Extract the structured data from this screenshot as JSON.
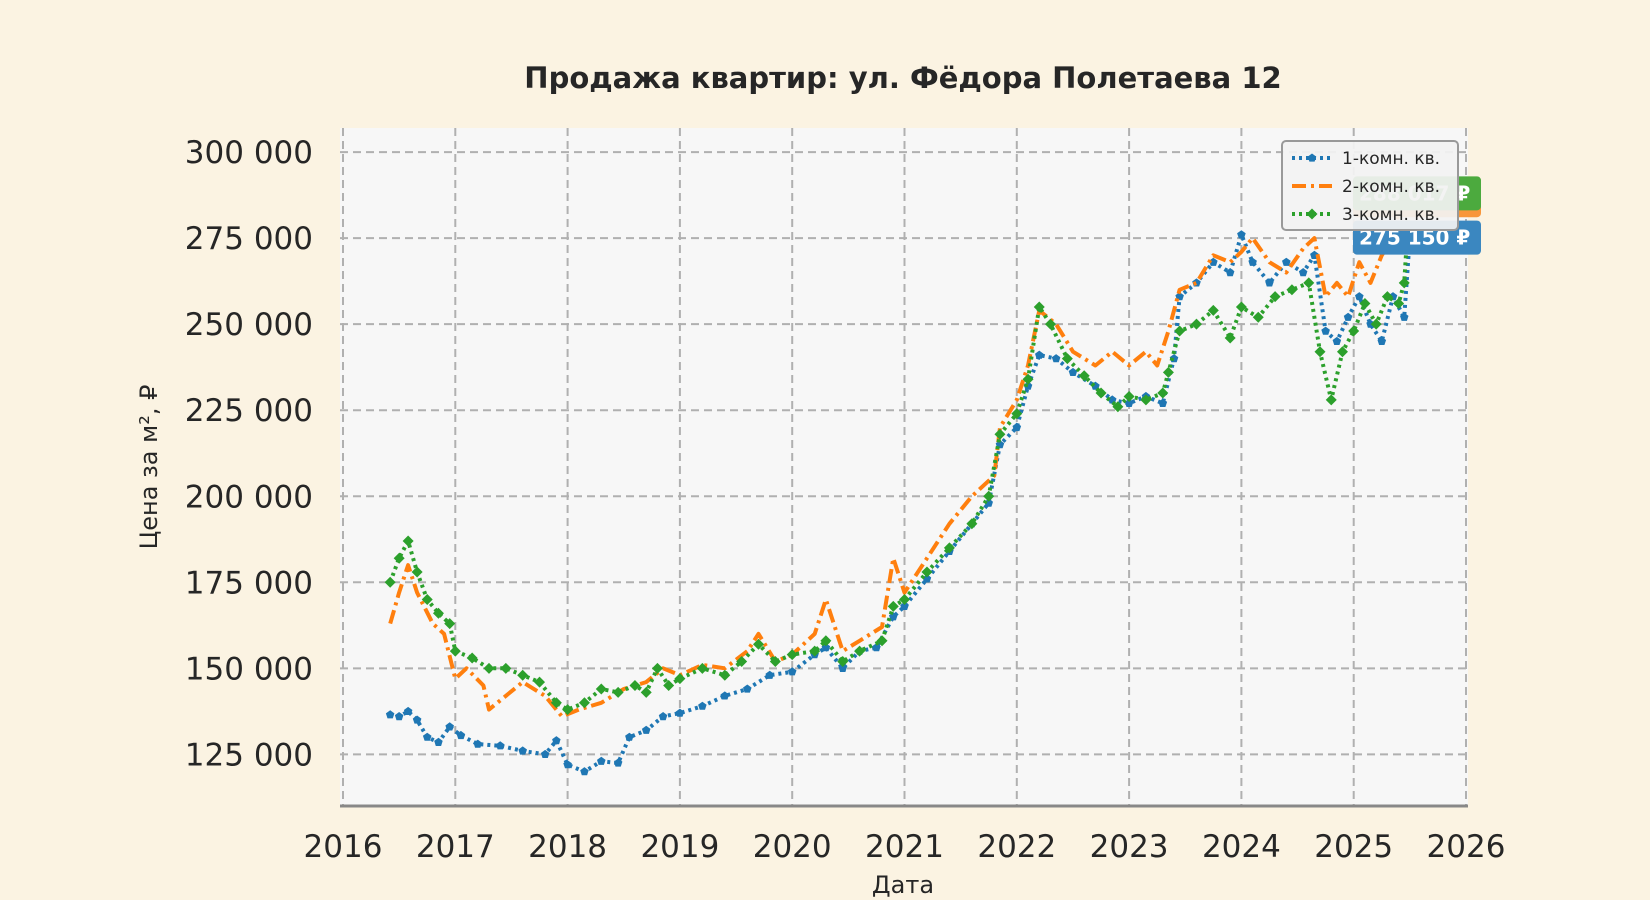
{
  "chart_data": {
    "type": "line",
    "title": "Продажа квартир: ул. Фёдора Полетаева 12",
    "xlabel": "Дата",
    "ylabel": "Цена за м², ₽",
    "xlim": [
      2016,
      2026
    ],
    "ylim": [
      110000,
      307000
    ],
    "x_ticks": [
      "2016",
      "2017",
      "2018",
      "2019",
      "2020",
      "2021",
      "2022",
      "2023",
      "2024",
      "2025",
      "2026"
    ],
    "y_ticks": [
      "300 000",
      "275 000",
      "250 000",
      "225 000",
      "200 000",
      "175 000",
      "150 000",
      "125 000"
    ],
    "y_tick_values": [
      300000,
      275000,
      250000,
      225000,
      200000,
      175000,
      150000,
      125000
    ],
    "grid": true,
    "legend_position": "top-right",
    "series": [
      {
        "name": "1-комн. кв.",
        "color": "#1f77b4",
        "line_style": "dotted",
        "marker": "pentagon",
        "last_value_label": "275 150 ₽",
        "points": [
          [
            2016.42,
            136500
          ],
          [
            2016.5,
            136000
          ],
          [
            2016.58,
            137500
          ],
          [
            2016.66,
            135000
          ],
          [
            2016.75,
            130000
          ],
          [
            2016.85,
            128500
          ],
          [
            2016.95,
            133000
          ],
          [
            2017.05,
            130500
          ],
          [
            2017.2,
            128000
          ],
          [
            2017.4,
            127500
          ],
          [
            2017.6,
            126000
          ],
          [
            2017.8,
            125000
          ],
          [
            2017.9,
            129000
          ],
          [
            2018.0,
            122000
          ],
          [
            2018.15,
            120000
          ],
          [
            2018.3,
            123000
          ],
          [
            2018.45,
            122500
          ],
          [
            2018.55,
            130000
          ],
          [
            2018.7,
            132000
          ],
          [
            2018.85,
            136000
          ],
          [
            2019.0,
            137000
          ],
          [
            2019.2,
            139000
          ],
          [
            2019.4,
            142000
          ],
          [
            2019.6,
            144000
          ],
          [
            2019.8,
            148000
          ],
          [
            2020.0,
            149000
          ],
          [
            2020.2,
            154000
          ],
          [
            2020.3,
            156000
          ],
          [
            2020.45,
            150000
          ],
          [
            2020.6,
            155000
          ],
          [
            2020.75,
            156000
          ],
          [
            2020.9,
            165000
          ],
          [
            2021.0,
            168000
          ],
          [
            2021.2,
            176000
          ],
          [
            2021.4,
            184000
          ],
          [
            2021.6,
            192000
          ],
          [
            2021.75,
            198000
          ],
          [
            2021.85,
            215000
          ],
          [
            2022.0,
            220000
          ],
          [
            2022.1,
            232000
          ],
          [
            2022.2,
            241000
          ],
          [
            2022.35,
            240000
          ],
          [
            2022.5,
            236000
          ],
          [
            2022.7,
            232000
          ],
          [
            2022.85,
            228000
          ],
          [
            2023.0,
            227000
          ],
          [
            2023.15,
            229000
          ],
          [
            2023.3,
            227000
          ],
          [
            2023.4,
            240000
          ],
          [
            2023.45,
            258000
          ],
          [
            2023.6,
            262000
          ],
          [
            2023.75,
            268000
          ],
          [
            2023.9,
            265000
          ],
          [
            2024.0,
            276000
          ],
          [
            2024.1,
            268000
          ],
          [
            2024.25,
            262000
          ],
          [
            2024.4,
            268000
          ],
          [
            2024.55,
            265000
          ],
          [
            2024.65,
            270000
          ],
          [
            2024.75,
            248000
          ],
          [
            2024.85,
            245000
          ],
          [
            2024.95,
            252000
          ],
          [
            2025.05,
            258000
          ],
          [
            2025.15,
            250000
          ],
          [
            2025.25,
            245000
          ],
          [
            2025.35,
            258000
          ],
          [
            2025.45,
            252000
          ],
          [
            2025.5,
            275150
          ]
        ]
      },
      {
        "name": "2-комн. кв.",
        "color": "#ff7f0e",
        "line_style": "dashdot",
        "marker": "none",
        "last_value_label": "286 017 ₽",
        "points": [
          [
            2016.42,
            163000
          ],
          [
            2016.5,
            172000
          ],
          [
            2016.58,
            180000
          ],
          [
            2016.66,
            172000
          ],
          [
            2016.8,
            163000
          ],
          [
            2016.9,
            160000
          ],
          [
            2017.0,
            147000
          ],
          [
            2017.1,
            150000
          ],
          [
            2017.25,
            145000
          ],
          [
            2017.3,
            138000
          ],
          [
            2017.45,
            142000
          ],
          [
            2017.6,
            146000
          ],
          [
            2017.8,
            142000
          ],
          [
            2017.95,
            136000
          ],
          [
            2018.1,
            138000
          ],
          [
            2018.3,
            140000
          ],
          [
            2018.5,
            144000
          ],
          [
            2018.7,
            146000
          ],
          [
            2018.85,
            150000
          ],
          [
            2019.0,
            148000
          ],
          [
            2019.2,
            151000
          ],
          [
            2019.4,
            150000
          ],
          [
            2019.6,
            155000
          ],
          [
            2019.7,
            160000
          ],
          [
            2019.85,
            152000
          ],
          [
            2020.0,
            154000
          ],
          [
            2020.2,
            160000
          ],
          [
            2020.3,
            170000
          ],
          [
            2020.45,
            155000
          ],
          [
            2020.6,
            158000
          ],
          [
            2020.8,
            162000
          ],
          [
            2020.9,
            182000
          ],
          [
            2021.0,
            172000
          ],
          [
            2021.2,
            182000
          ],
          [
            2021.4,
            192000
          ],
          [
            2021.6,
            200000
          ],
          [
            2021.8,
            206000
          ],
          [
            2021.85,
            220000
          ],
          [
            2022.0,
            228000
          ],
          [
            2022.1,
            238000
          ],
          [
            2022.2,
            254000
          ],
          [
            2022.35,
            250000
          ],
          [
            2022.5,
            242000
          ],
          [
            2022.7,
            238000
          ],
          [
            2022.85,
            242000
          ],
          [
            2023.0,
            238000
          ],
          [
            2023.15,
            242000
          ],
          [
            2023.25,
            238000
          ],
          [
            2023.35,
            248000
          ],
          [
            2023.45,
            260000
          ],
          [
            2023.6,
            262000
          ],
          [
            2023.75,
            270000
          ],
          [
            2023.9,
            268000
          ],
          [
            2024.0,
            271000
          ],
          [
            2024.1,
            275000
          ],
          [
            2024.25,
            268000
          ],
          [
            2024.4,
            265000
          ],
          [
            2024.55,
            272000
          ],
          [
            2024.65,
            275000
          ],
          [
            2024.75,
            258000
          ],
          [
            2024.85,
            262000
          ],
          [
            2024.95,
            258000
          ],
          [
            2025.05,
            268000
          ],
          [
            2025.15,
            262000
          ],
          [
            2025.25,
            270000
          ],
          [
            2025.35,
            275000
          ],
          [
            2025.45,
            290000
          ],
          [
            2025.5,
            286017
          ]
        ]
      },
      {
        "name": "3-комн. кв.",
        "color": "#2ca02c",
        "line_style": "dotted",
        "marker": "diamond",
        "last_value_label": "288 017 ₽",
        "points": [
          [
            2016.42,
            175000
          ],
          [
            2016.5,
            182000
          ],
          [
            2016.58,
            187000
          ],
          [
            2016.66,
            178000
          ],
          [
            2016.75,
            170000
          ],
          [
            2016.85,
            166000
          ],
          [
            2016.95,
            163000
          ],
          [
            2017.0,
            155000
          ],
          [
            2017.15,
            153000
          ],
          [
            2017.3,
            150000
          ],
          [
            2017.45,
            150000
          ],
          [
            2017.6,
            148000
          ],
          [
            2017.75,
            146000
          ],
          [
            2017.9,
            140000
          ],
          [
            2018.0,
            138000
          ],
          [
            2018.15,
            140000
          ],
          [
            2018.3,
            144000
          ],
          [
            2018.45,
            143000
          ],
          [
            2018.6,
            145000
          ],
          [
            2018.7,
            143000
          ],
          [
            2018.8,
            150000
          ],
          [
            2018.9,
            145000
          ],
          [
            2019.0,
            147000
          ],
          [
            2019.2,
            150000
          ],
          [
            2019.4,
            148000
          ],
          [
            2019.55,
            152000
          ],
          [
            2019.7,
            157000
          ],
          [
            2019.85,
            152000
          ],
          [
            2020.0,
            154000
          ],
          [
            2020.2,
            155000
          ],
          [
            2020.3,
            158000
          ],
          [
            2020.45,
            152000
          ],
          [
            2020.6,
            155000
          ],
          [
            2020.8,
            158000
          ],
          [
            2020.9,
            168000
          ],
          [
            2021.0,
            170000
          ],
          [
            2021.2,
            178000
          ],
          [
            2021.4,
            185000
          ],
          [
            2021.6,
            192000
          ],
          [
            2021.75,
            200000
          ],
          [
            2021.85,
            218000
          ],
          [
            2022.0,
            224000
          ],
          [
            2022.1,
            234000
          ],
          [
            2022.2,
            255000
          ],
          [
            2022.3,
            250000
          ],
          [
            2022.45,
            240000
          ],
          [
            2022.6,
            235000
          ],
          [
            2022.75,
            230000
          ],
          [
            2022.9,
            226000
          ],
          [
            2023.0,
            229000
          ],
          [
            2023.15,
            228000
          ],
          [
            2023.3,
            230000
          ],
          [
            2023.35,
            236000
          ],
          [
            2023.45,
            248000
          ],
          [
            2023.6,
            250000
          ],
          [
            2023.75,
            254000
          ],
          [
            2023.9,
            246000
          ],
          [
            2024.0,
            255000
          ],
          [
            2024.15,
            252000
          ],
          [
            2024.3,
            258000
          ],
          [
            2024.45,
            260000
          ],
          [
            2024.6,
            262000
          ],
          [
            2024.7,
            242000
          ],
          [
            2024.8,
            228000
          ],
          [
            2024.9,
            242000
          ],
          [
            2025.0,
            248000
          ],
          [
            2025.1,
            256000
          ],
          [
            2025.2,
            250000
          ],
          [
            2025.3,
            258000
          ],
          [
            2025.4,
            256000
          ],
          [
            2025.45,
            262000
          ],
          [
            2025.5,
            288017
          ]
        ]
      }
    ]
  }
}
